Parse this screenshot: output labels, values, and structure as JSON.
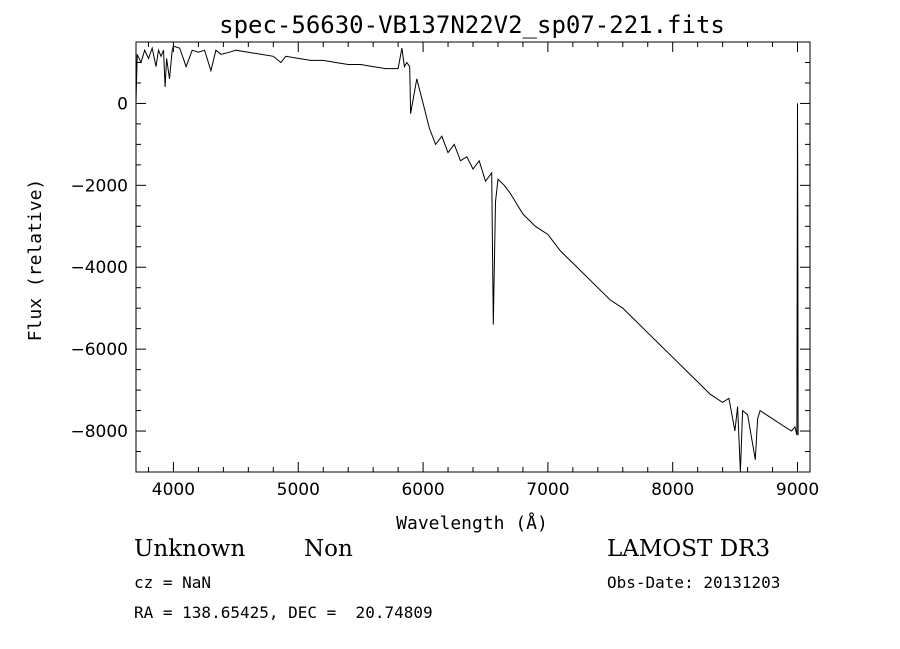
{
  "chart_data": {
    "type": "line",
    "title": "spec-56630-VB137N22V2_sp07-221.fits",
    "xlabel": "Wavelength (Å)",
    "ylabel": "Flux (relative)",
    "xlim": [
      3700,
      9100
    ],
    "ylim": [
      -9000,
      1500
    ],
    "x_ticks": [
      4000,
      5000,
      6000,
      7000,
      8000,
      9000
    ],
    "x_tick_labels": [
      "4000",
      "5000",
      "6000",
      "7000",
      "8000",
      "9000"
    ],
    "y_ticks": [
      0,
      -2000,
      -4000,
      -6000,
      -8000
    ],
    "y_tick_labels": [
      "0",
      "−2000",
      "−4000",
      "−6000",
      "−8000"
    ],
    "grid": false,
    "legend": "none",
    "series": [
      {
        "x": [
          3700,
          3710,
          3740,
          3770,
          3800,
          3830,
          3860,
          3880,
          3900,
          3920,
          3933,
          3945,
          3968,
          3990,
          4000,
          4050,
          4101,
          4150,
          4200,
          4250,
          4300,
          4340,
          4380,
          4450,
          4500,
          4600,
          4700,
          4800,
          4861,
          4900,
          5000,
          5100,
          5200,
          5300,
          5400,
          5500,
          5600,
          5700,
          5800,
          5830,
          5850,
          5870,
          5893,
          5900,
          5950,
          6000,
          6050,
          6100,
          6150,
          6200,
          6250,
          6300,
          6350,
          6400,
          6450,
          6500,
          6550,
          6563,
          6580,
          6600,
          6650,
          6700,
          6800,
          6900,
          7000,
          7100,
          7200,
          7300,
          7400,
          7500,
          7600,
          7700,
          7800,
          7900,
          8000,
          8100,
          8200,
          8300,
          8400,
          8450,
          8498,
          8520,
          8542,
          8560,
          8600,
          8662,
          8680,
          8700,
          8800,
          8900,
          8950,
          8980,
          8995,
          9000,
          9002,
          9005
        ],
        "y": [
          0,
          1200,
          1000,
          1300,
          1100,
          1350,
          900,
          1300,
          1150,
          1300,
          400,
          1100,
          600,
          1300,
          1400,
          1350,
          900,
          1300,
          1250,
          1300,
          800,
          1300,
          1200,
          1250,
          1300,
          1250,
          1200,
          1150,
          1000,
          1150,
          1100,
          1050,
          1050,
          1000,
          950,
          950,
          900,
          850,
          850,
          1350,
          900,
          1000,
          900,
          -250,
          600,
          0,
          -600,
          -1000,
          -800,
          -1200,
          -1000,
          -1400,
          -1300,
          -1600,
          -1400,
          -1900,
          -1700,
          -5400,
          -2400,
          -1850,
          -2000,
          -2200,
          -2700,
          -3000,
          -3200,
          -3600,
          -3900,
          -4200,
          -4500,
          -4800,
          -5000,
          -5300,
          -5600,
          -5900,
          -6200,
          -6500,
          -6800,
          -7100,
          -7300,
          -7200,
          -8000,
          -7400,
          -9000,
          -7500,
          -7600,
          -8700,
          -7700,
          -7500,
          -7700,
          -7900,
          -8000,
          -7900,
          -8100,
          0,
          -2800,
          -8100
        ]
      }
    ]
  },
  "footer": {
    "object_class": "Unknown",
    "object_subclass": "Non",
    "redshift": "cz = NaN",
    "coordinates": "RA = 138.65425, DEC =  20.74809",
    "survey": "LAMOST DR3",
    "obs_date": "Obs-Date: 20131203"
  }
}
